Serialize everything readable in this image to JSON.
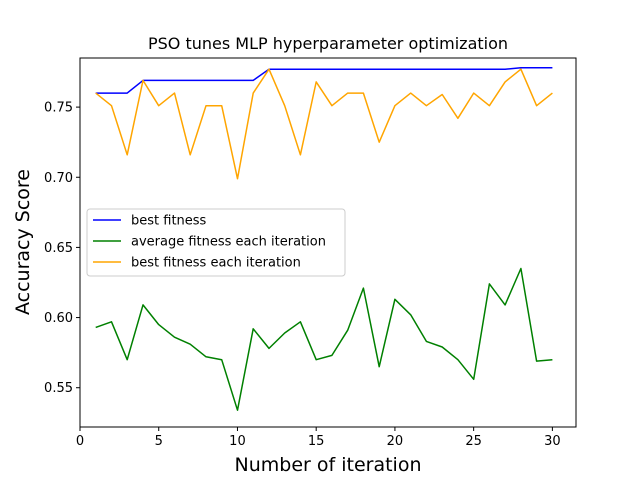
{
  "chart_data": {
    "type": "line",
    "title": "PSO tunes MLP hyperparameter optimization",
    "xlabel": "Number of iteration",
    "ylabel": "Accuracy Score",
    "xlim": [
      0.0,
      31.5
    ],
    "ylim": [
      0.522,
      0.785
    ],
    "x_ticks": [
      0,
      5,
      10,
      15,
      20,
      25,
      30
    ],
    "y_ticks": [
      0.55,
      0.6,
      0.65,
      0.7,
      0.75
    ],
    "y_tick_labels": [
      "0.55",
      "0.60",
      "0.65",
      "0.70",
      "0.75"
    ],
    "grid": false,
    "legend_position": "center-left",
    "x": [
      1,
      2,
      3,
      4,
      5,
      6,
      7,
      8,
      9,
      10,
      11,
      12,
      13,
      14,
      15,
      16,
      17,
      18,
      19,
      20,
      21,
      22,
      23,
      24,
      25,
      26,
      27,
      28,
      29,
      30
    ],
    "series": [
      {
        "name": "best fitness",
        "color": "#0000ff",
        "values": [
          0.76,
          0.76,
          0.76,
          0.769,
          0.769,
          0.769,
          0.769,
          0.769,
          0.769,
          0.769,
          0.769,
          0.777,
          0.777,
          0.777,
          0.777,
          0.777,
          0.777,
          0.777,
          0.777,
          0.777,
          0.777,
          0.777,
          0.777,
          0.777,
          0.777,
          0.777,
          0.777,
          0.778,
          0.778,
          0.778
        ]
      },
      {
        "name": "average fitness each iteration",
        "color": "#008000",
        "values": [
          0.593,
          0.597,
          0.57,
          0.609,
          0.595,
          0.586,
          0.581,
          0.572,
          0.57,
          0.534,
          0.592,
          0.578,
          0.589,
          0.597,
          0.57,
          0.573,
          0.591,
          0.621,
          0.565,
          0.613,
          0.602,
          0.583,
          0.579,
          0.57,
          0.556,
          0.624,
          0.609,
          0.635,
          0.569,
          0.57
        ]
      },
      {
        "name": "best fitness each iteration",
        "color": "#ffa500",
        "values": [
          0.76,
          0.751,
          0.716,
          0.769,
          0.751,
          0.76,
          0.716,
          0.751,
          0.751,
          0.699,
          0.76,
          0.777,
          0.751,
          0.716,
          0.768,
          0.751,
          0.76,
          0.76,
          0.725,
          0.751,
          0.76,
          0.751,
          0.759,
          0.742,
          0.76,
          0.751,
          0.768,
          0.777,
          0.751,
          0.76
        ]
      }
    ]
  }
}
